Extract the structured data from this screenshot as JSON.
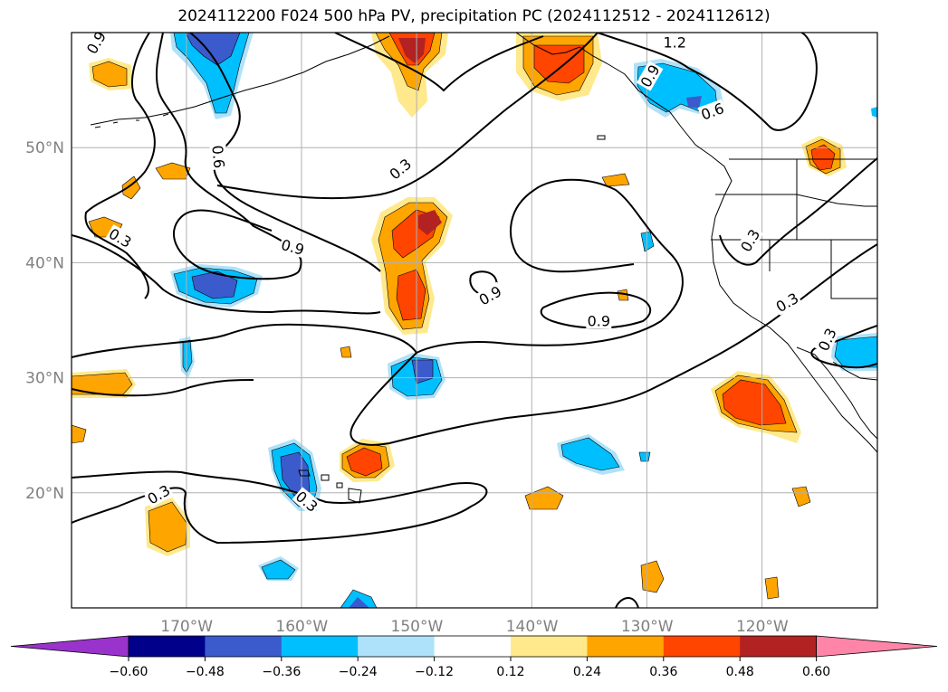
{
  "title": "2024112200 F024 500 hPa PV, precipitation PC (2024112512 - 2024112612)",
  "map": {
    "lon_range": [
      -180,
      -110
    ],
    "lat_range": [
      10,
      60
    ],
    "lat_ticks": [
      {
        "value": 50,
        "label": "50°N"
      },
      {
        "value": 40,
        "label": "40°N"
      },
      {
        "value": 30,
        "label": "30°N"
      },
      {
        "value": 20,
        "label": "20°N"
      }
    ],
    "lon_ticks": [
      {
        "value": -170,
        "label": "170°W"
      },
      {
        "value": -160,
        "label": "160°W"
      },
      {
        "value": -150,
        "label": "150°W"
      },
      {
        "value": -140,
        "label": "140°W"
      },
      {
        "value": -130,
        "label": "130°W"
      },
      {
        "value": -120,
        "label": "120°W"
      }
    ],
    "gridlines": true
  },
  "contour_labels": [
    {
      "text": "0.9",
      "lon": -177.8,
      "lat": 59.1,
      "rot": -60
    },
    {
      "text": "1.2",
      "lon": -127.6,
      "lat": 59.1,
      "rot": 0
    },
    {
      "text": "0.9",
      "lon": -129.7,
      "lat": 56.2,
      "rot": -60
    },
    {
      "text": "0.6",
      "lon": -124.3,
      "lat": 53.1,
      "rot": -20
    },
    {
      "text": "0.6",
      "lon": -167.3,
      "lat": 49.2,
      "rot": 85
    },
    {
      "text": "0.3",
      "lon": -151.4,
      "lat": 48.1,
      "rot": -40
    },
    {
      "text": "0.3",
      "lon": -175.8,
      "lat": 42.1,
      "rot": 30
    },
    {
      "text": "0.9",
      "lon": -160.8,
      "lat": 41.3,
      "rot": 15
    },
    {
      "text": "0.3",
      "lon": -121.0,
      "lat": 41.9,
      "rot": -60
    },
    {
      "text": "0.9",
      "lon": -143.6,
      "lat": 37.1,
      "rot": -30
    },
    {
      "text": "0.9",
      "lon": -134.2,
      "lat": 34.9,
      "rot": 0
    },
    {
      "text": "0.3",
      "lon": -117.8,
      "lat": 36.5,
      "rot": -30
    },
    {
      "text": "0.3",
      "lon": -114.3,
      "lat": 33.3,
      "rot": -65
    },
    {
      "text": "0.3",
      "lon": -172.4,
      "lat": 19.8,
      "rot": -30
    },
    {
      "text": "0.3",
      "lon": -159.6,
      "lat": 19.2,
      "rot": 40
    }
  ],
  "colorbar": {
    "ticks": [
      "−0.60",
      "−0.48",
      "−0.36",
      "−0.24",
      "−0.12",
      "0.12",
      "0.24",
      "0.36",
      "0.48",
      "0.60"
    ],
    "colors": [
      "#9933cc",
      "#00008b",
      "#3b5bcc",
      "#00bfff",
      "#aee2fa",
      "#ffffff",
      "#ffe98c",
      "#ffa500",
      "#ff4500",
      "#b22222",
      "#ff85a8"
    ]
  }
}
